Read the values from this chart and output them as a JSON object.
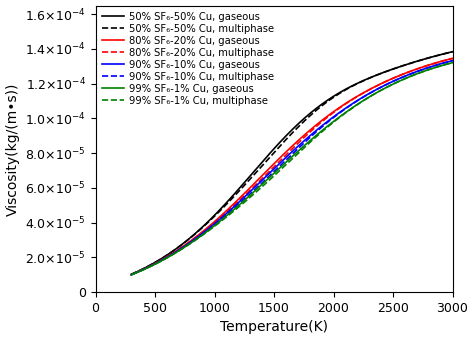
{
  "title": "",
  "xlabel": "Temperature(K)",
  "ylabel": "Viscosity(kg/(m•s))",
  "xlim": [
    0,
    3000
  ],
  "ylim": [
    0,
    0.000165
  ],
  "yticks": [
    0,
    2e-05,
    4e-05,
    6e-05,
    8e-05,
    0.0001,
    0.00012,
    0.00014,
    0.00016
  ],
  "xticks": [
    0,
    500,
    1000,
    1500,
    2000,
    2500,
    3000
  ],
  "series": [
    {
      "label": "50% SF₆-50% Cu, gaseous",
      "color": "#000000",
      "linestyle": "solid",
      "sf6": 50,
      "cu": 50,
      "gaseous": true
    },
    {
      "label": "50% SF₆-50% Cu, multiphase",
      "color": "#000000",
      "linestyle": "dashed",
      "sf6": 50,
      "cu": 50,
      "gaseous": false
    },
    {
      "label": "80% SF₆-20% Cu, gaseous",
      "color": "#ff0000",
      "linestyle": "solid",
      "sf6": 80,
      "cu": 20,
      "gaseous": true
    },
    {
      "label": "80% SF₆-20% Cu, multiphase",
      "color": "#ff0000",
      "linestyle": "dashed",
      "sf6": 80,
      "cu": 20,
      "gaseous": false
    },
    {
      "label": "90% SF₆-10% Cu, gaseous",
      "color": "#0000ff",
      "linestyle": "solid",
      "sf6": 90,
      "cu": 10,
      "gaseous": true
    },
    {
      "label": "90% SF₆-10% Cu, multiphase",
      "color": "#0000ff",
      "linestyle": "dashed",
      "sf6": 90,
      "cu": 10,
      "gaseous": false
    },
    {
      "label": "99% SF₆-1% Cu, gaseous",
      "color": "#008000",
      "linestyle": "solid",
      "sf6": 99,
      "cu": 1,
      "gaseous": true
    },
    {
      "label": "99% SF₆-1% Cu, multiphase",
      "color": "#008000",
      "linestyle": "dashed",
      "sf6": 99,
      "cu": 1,
      "gaseous": false
    }
  ],
  "background_color": "#ffffff",
  "legend_fontsize": 7.2,
  "axis_fontsize": 10,
  "tick_fontsize": 9,
  "linewidth": 1.2
}
